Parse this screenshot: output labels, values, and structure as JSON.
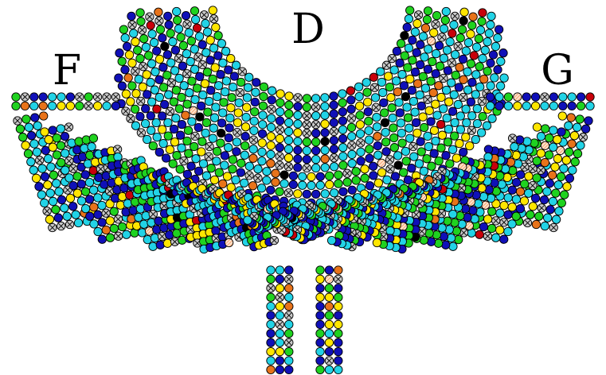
{
  "sections": {
    "D": {
      "label": "D"
    },
    "F": {
      "label": "F"
    },
    "G": {
      "label": "G"
    }
  },
  "legend_colors": {
    "cyan": "#22d3e6",
    "blue": "#1010b8",
    "green": "#1fd21f",
    "yellow": "#ffe600",
    "orange": "#e8731a",
    "red": "#c8000a",
    "black": "#000000",
    "unavailable": "#c8c8c8",
    "held": "#ffb98a"
  },
  "icons": {
    "unavailable": "x-circle-icon",
    "held": "crosshatch-circle-icon"
  }
}
